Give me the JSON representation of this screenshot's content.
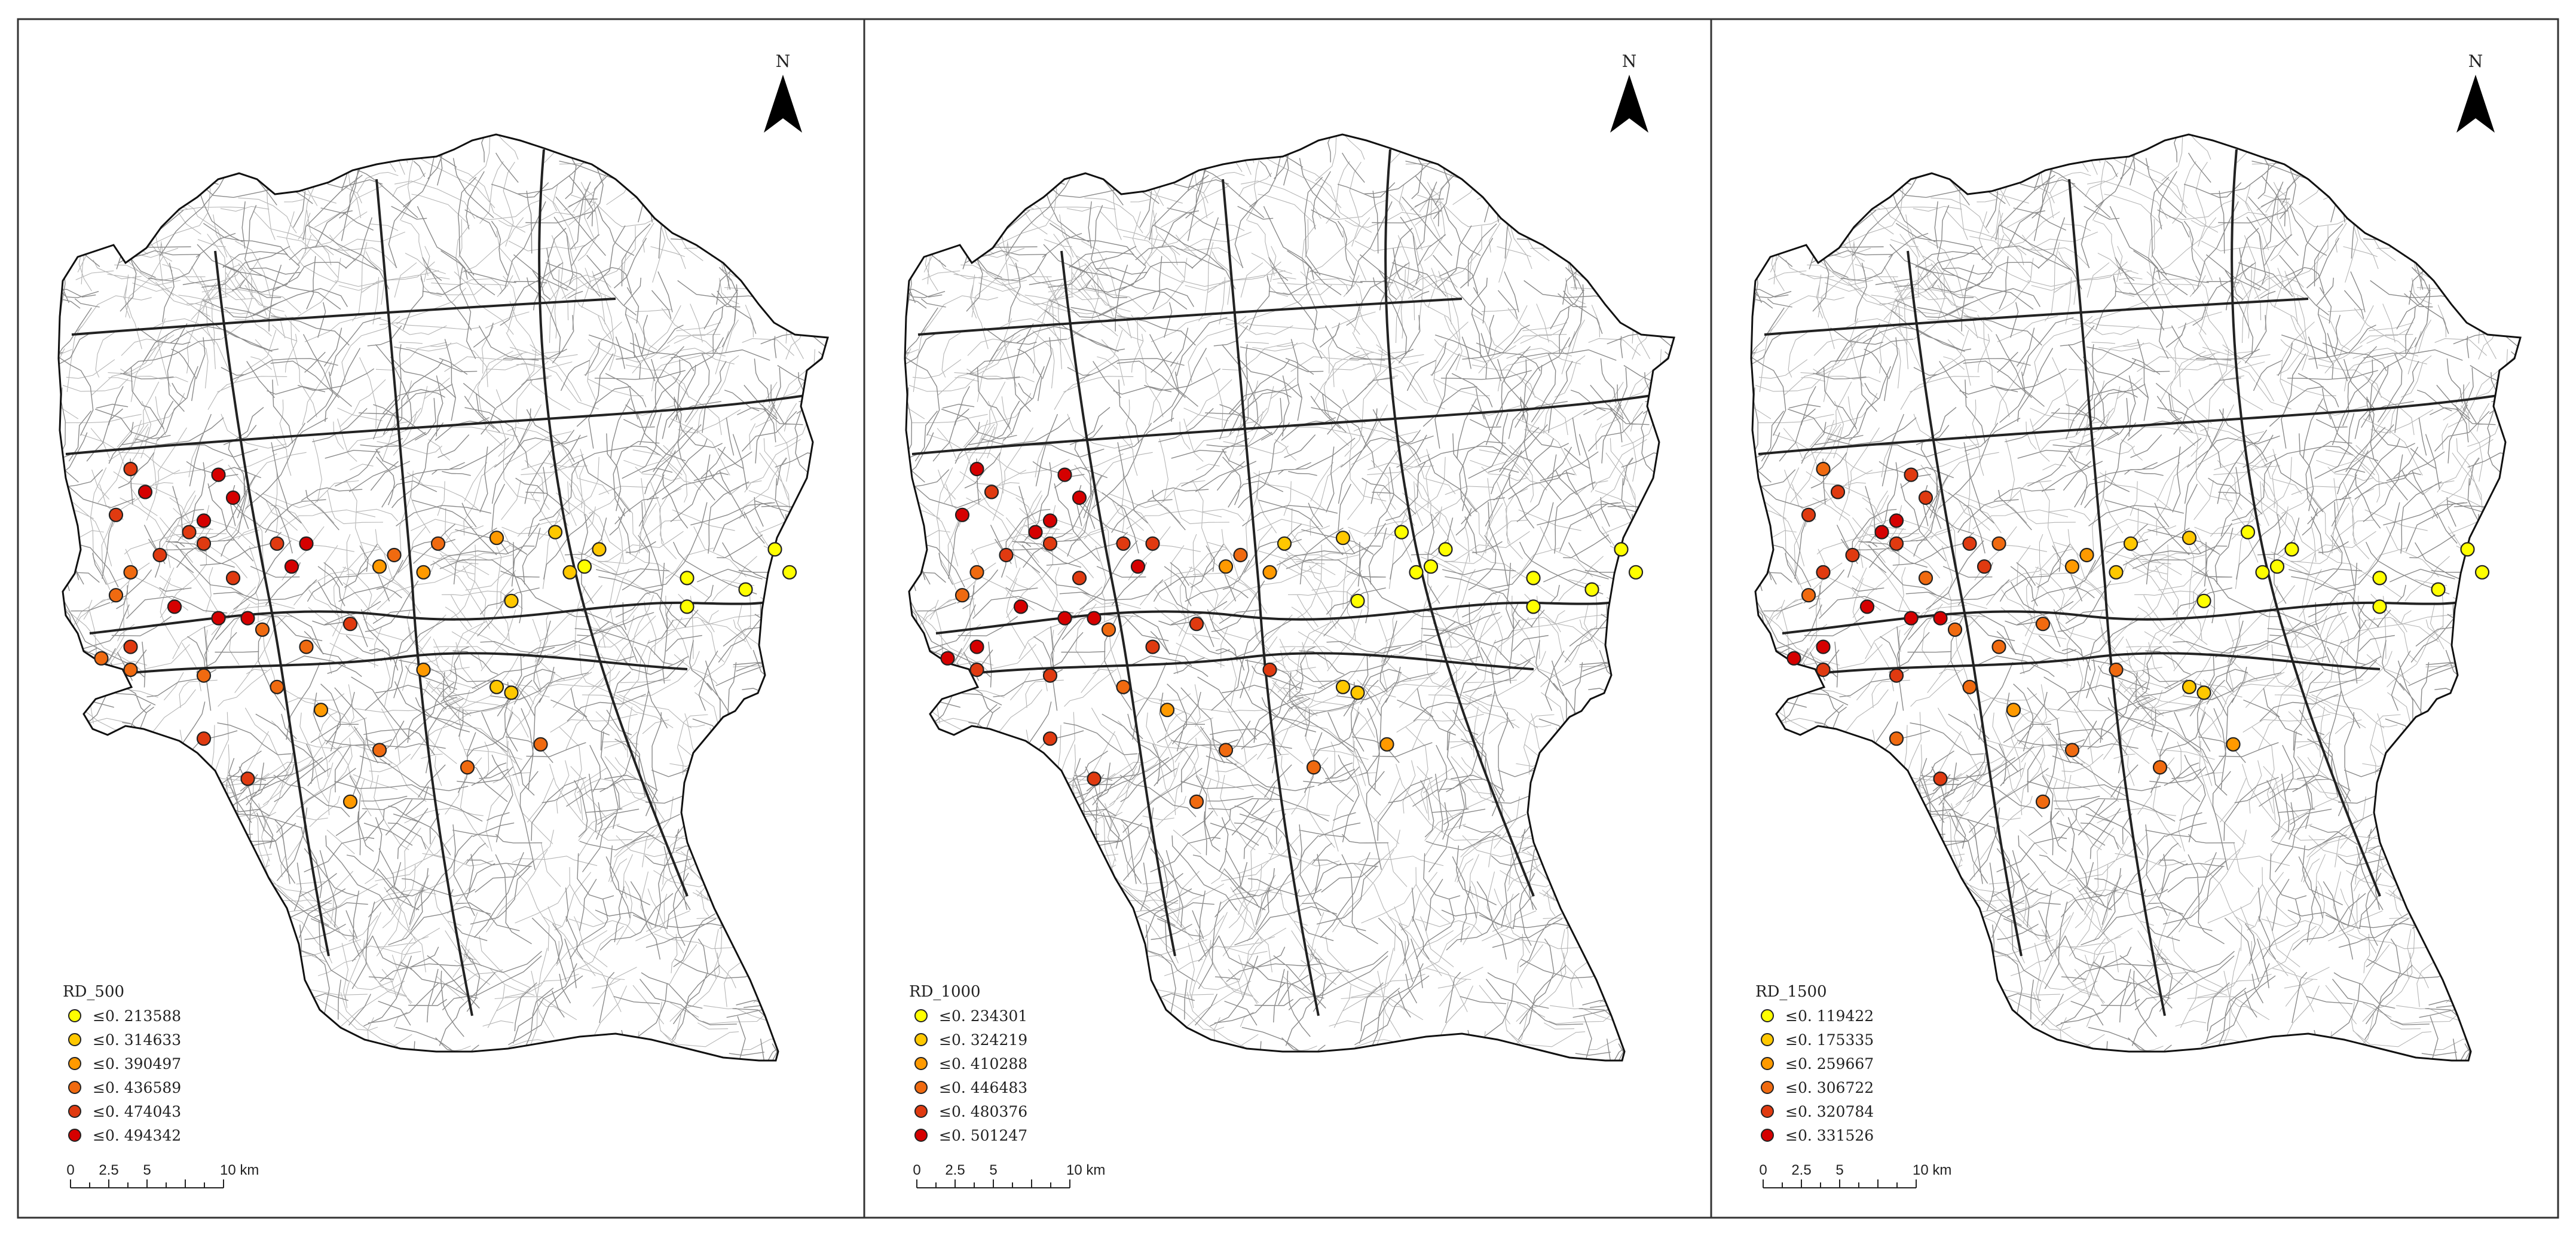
{
  "north_label": "N",
  "panels": [
    {
      "legend_title": "RD_500",
      "classes": [
        "≤0. 213588",
        "≤0. 314633",
        "≤0. 390497",
        "≤0. 436589",
        "≤0. 474043",
        "≤0. 494342"
      ],
      "scale_labels": [
        "0",
        "2.5",
        "5",
        "10 km"
      ],
      "points": [
        [
          3,
          25
        ],
        [
          4,
          29
        ],
        [
          2,
          33
        ],
        [
          9,
          26
        ],
        [
          8,
          34
        ],
        [
          10,
          30
        ],
        [
          7,
          36
        ],
        [
          5,
          40
        ],
        [
          8,
          38
        ],
        [
          3,
          43
        ],
        [
          2,
          47
        ],
        [
          14,
          42
        ],
        [
          13,
          38
        ],
        [
          15,
          38
        ],
        [
          10,
          44
        ],
        [
          20,
          42
        ],
        [
          21,
          40
        ],
        [
          23,
          43
        ],
        [
          24,
          38
        ],
        [
          28,
          37
        ],
        [
          32,
          36
        ],
        [
          33,
          43
        ],
        [
          35,
          39
        ],
        [
          34,
          42
        ],
        [
          41,
          44
        ],
        [
          41,
          49
        ],
        [
          45,
          46
        ],
        [
          47,
          39
        ],
        [
          48,
          43
        ],
        [
          29,
          48
        ],
        [
          6,
          49
        ],
        [
          9,
          51
        ],
        [
          11,
          51
        ],
        [
          18,
          52
        ],
        [
          15,
          56
        ],
        [
          12,
          53
        ],
        [
          3,
          56
        ],
        [
          1,
          58
        ],
        [
          3,
          60
        ],
        [
          8,
          61
        ],
        [
          13,
          63
        ],
        [
          23,
          60
        ],
        [
          16,
          67
        ],
        [
          28,
          63
        ],
        [
          29,
          64
        ],
        [
          8,
          72
        ],
        [
          20,
          74
        ],
        [
          26,
          77
        ],
        [
          31,
          73
        ],
        [
          11,
          79
        ],
        [
          18,
          83
        ]
      ]
    },
    {
      "legend_title": "RD_1000",
      "classes": [
        "≤0. 234301",
        "≤0. 324219",
        "≤0. 410288",
        "≤0. 446483",
        "≤0. 480376",
        "≤0. 501247"
      ],
      "scale_labels": [
        "0",
        "2.5",
        "5",
        "10 km"
      ],
      "points": [
        [
          3,
          25
        ],
        [
          4,
          29
        ],
        [
          2,
          33
        ],
        [
          9,
          26
        ],
        [
          8,
          34
        ],
        [
          10,
          30
        ],
        [
          7,
          36
        ],
        [
          5,
          40
        ],
        [
          8,
          38
        ],
        [
          3,
          43
        ],
        [
          2,
          47
        ],
        [
          14,
          42
        ],
        [
          13,
          38
        ],
        [
          15,
          38
        ],
        [
          10,
          44
        ],
        [
          20,
          42
        ],
        [
          21,
          40
        ],
        [
          23,
          43
        ],
        [
          24,
          38
        ],
        [
          28,
          37
        ],
        [
          32,
          36
        ],
        [
          33,
          43
        ],
        [
          35,
          39
        ],
        [
          34,
          42
        ],
        [
          41,
          44
        ],
        [
          41,
          49
        ],
        [
          45,
          46
        ],
        [
          47,
          39
        ],
        [
          48,
          43
        ],
        [
          29,
          48
        ],
        [
          6,
          49
        ],
        [
          9,
          51
        ],
        [
          11,
          51
        ],
        [
          18,
          52
        ],
        [
          15,
          56
        ],
        [
          12,
          53
        ],
        [
          3,
          56
        ],
        [
          1,
          58
        ],
        [
          3,
          60
        ],
        [
          8,
          61
        ],
        [
          13,
          63
        ],
        [
          23,
          60
        ],
        [
          16,
          67
        ],
        [
          28,
          63
        ],
        [
          29,
          64
        ],
        [
          8,
          72
        ],
        [
          20,
          74
        ],
        [
          26,
          77
        ],
        [
          31,
          73
        ],
        [
          11,
          79
        ],
        [
          18,
          83
        ]
      ]
    },
    {
      "legend_title": "RD_1500",
      "classes": [
        "≤0. 119422",
        "≤0. 175335",
        "≤0. 259667",
        "≤0. 306722",
        "≤0. 320784",
        "≤0. 331526"
      ],
      "scale_labels": [
        "0",
        "2.5",
        "5",
        "10 km"
      ],
      "points": [
        [
          3,
          25
        ],
        [
          4,
          29
        ],
        [
          2,
          33
        ],
        [
          9,
          26
        ],
        [
          8,
          34
        ],
        [
          10,
          30
        ],
        [
          7,
          36
        ],
        [
          5,
          40
        ],
        [
          8,
          38
        ],
        [
          3,
          43
        ],
        [
          2,
          47
        ],
        [
          14,
          42
        ],
        [
          13,
          38
        ],
        [
          15,
          38
        ],
        [
          10,
          44
        ],
        [
          20,
          42
        ],
        [
          21,
          40
        ],
        [
          23,
          43
        ],
        [
          24,
          38
        ],
        [
          28,
          37
        ],
        [
          32,
          36
        ],
        [
          33,
          43
        ],
        [
          35,
          39
        ],
        [
          34,
          42
        ],
        [
          41,
          44
        ],
        [
          41,
          49
        ],
        [
          45,
          46
        ],
        [
          47,
          39
        ],
        [
          48,
          43
        ],
        [
          29,
          48
        ],
        [
          6,
          49
        ],
        [
          9,
          51
        ],
        [
          11,
          51
        ],
        [
          18,
          52
        ],
        [
          15,
          56
        ],
        [
          12,
          53
        ],
        [
          3,
          56
        ],
        [
          1,
          58
        ],
        [
          3,
          60
        ],
        [
          8,
          61
        ],
        [
          13,
          63
        ],
        [
          23,
          60
        ],
        [
          16,
          67
        ],
        [
          28,
          63
        ],
        [
          29,
          64
        ],
        [
          8,
          72
        ],
        [
          20,
          74
        ],
        [
          26,
          77
        ],
        [
          31,
          73
        ],
        [
          11,
          79
        ],
        [
          18,
          83
        ]
      ]
    }
  ],
  "colors": {
    "class_1": "#ffff00",
    "class_2": "#ffc800",
    "class_3": "#ff9a00",
    "class_4": "#f06a10",
    "class_5": "#e03a10",
    "class_6": "#d50000"
  },
  "point_classes": [
    [
      5,
      6,
      5,
      6,
      6,
      6,
      5,
      5,
      5,
      4,
      4,
      6,
      5,
      6,
      5,
      3,
      4,
      3,
      4,
      3,
      2,
      2,
      2,
      1,
      1,
      1,
      1,
      1,
      1,
      2,
      6,
      6,
      6,
      5,
      4,
      4,
      5,
      4,
      4,
      4,
      4,
      3,
      3,
      2,
      2,
      5,
      4,
      4,
      4,
      5,
      3
    ],
    [
      6,
      5,
      6,
      6,
      6,
      6,
      6,
      5,
      5,
      4,
      4,
      6,
      5,
      5,
      5,
      3,
      4,
      3,
      2,
      2,
      1,
      1,
      1,
      1,
      1,
      1,
      1,
      1,
      1,
      1,
      6,
      6,
      6,
      5,
      5,
      4,
      6,
      6,
      5,
      5,
      4,
      5,
      3,
      2,
      2,
      5,
      4,
      4,
      3,
      5,
      4
    ],
    [
      4,
      5,
      5,
      5,
      6,
      5,
      6,
      5,
      5,
      5,
      4,
      5,
      5,
      4,
      4,
      3,
      3,
      2,
      2,
      2,
      1,
      1,
      1,
      1,
      1,
      1,
      1,
      1,
      1,
      1,
      6,
      6,
      6,
      4,
      4,
      4,
      6,
      6,
      5,
      5,
      4,
      4,
      3,
      2,
      2,
      4,
      4,
      4,
      3,
      5,
      4
    ]
  ]
}
